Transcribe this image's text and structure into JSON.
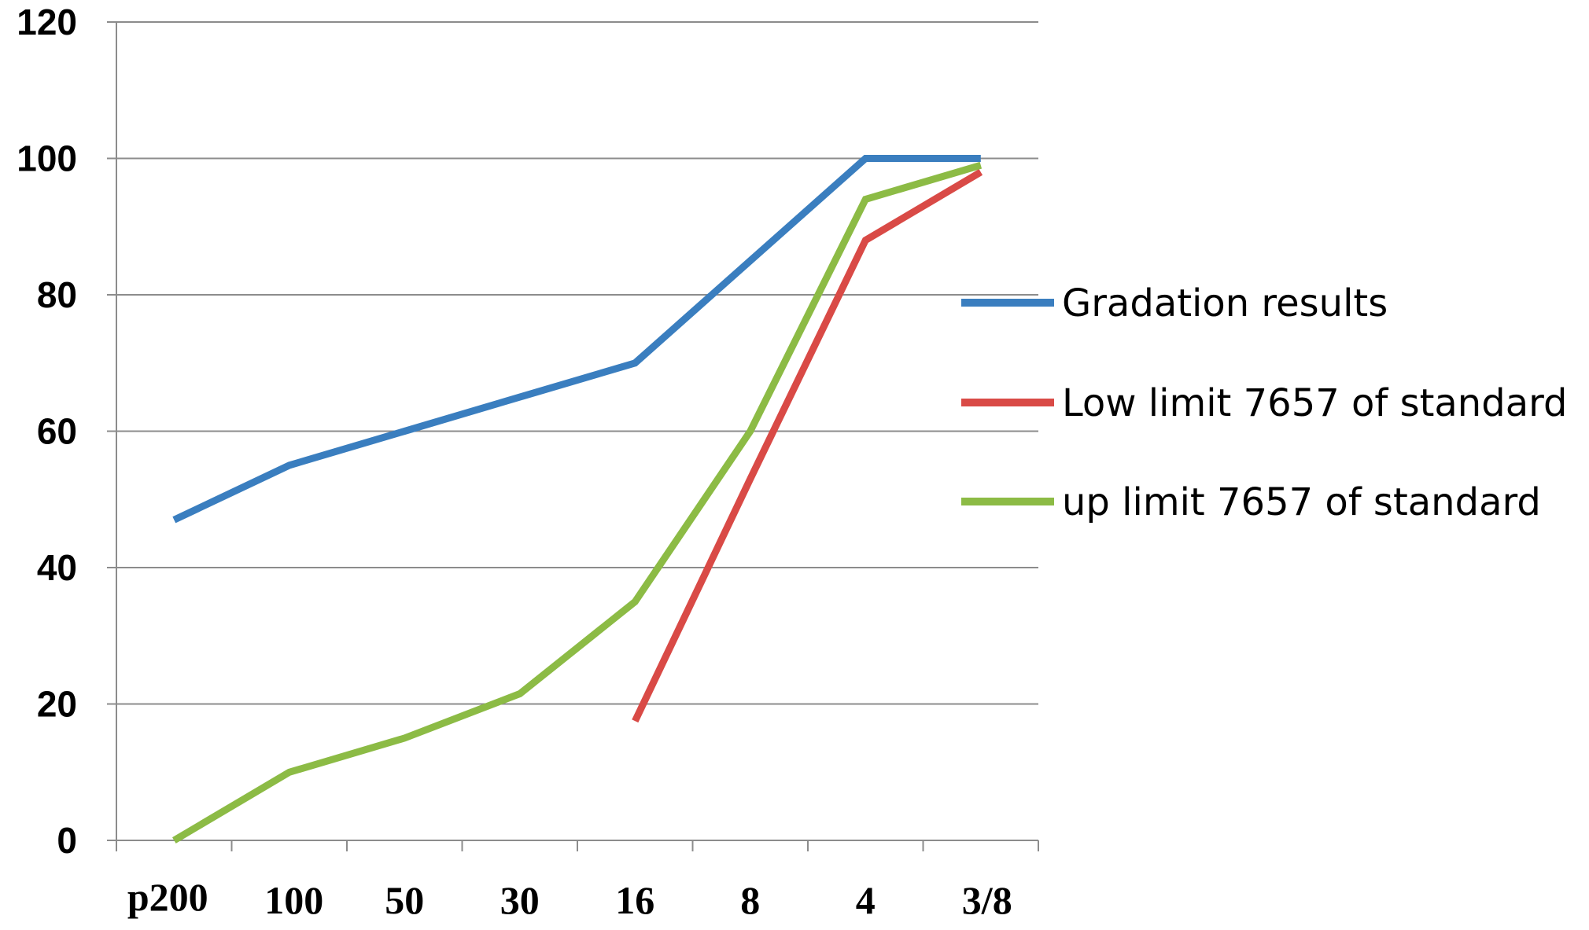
{
  "chart_data": {
    "type": "line",
    "categories": [
      "p200",
      "100",
      "50",
      "30",
      "16",
      "8",
      "4",
      "3/8"
    ],
    "ylim": [
      0,
      120
    ],
    "yticks": [
      0,
      20,
      40,
      60,
      80,
      100,
      120
    ],
    "grid": true,
    "legend_position": "right",
    "series": [
      {
        "name": "Gradation results",
        "color": "#3a7ebf",
        "points": [
          [
            0,
            47
          ],
          [
            1,
            55
          ],
          [
            2,
            60
          ],
          [
            3,
            65
          ],
          [
            4,
            70
          ],
          [
            5,
            85
          ],
          [
            6,
            100
          ],
          [
            7,
            100
          ]
        ]
      },
      {
        "name": "Low limit 7657 of standard",
        "color": "#d94a46",
        "points": [
          [
            4,
            17.5
          ],
          [
            5,
            53
          ],
          [
            6,
            88
          ],
          [
            7,
            98
          ]
        ]
      },
      {
        "name": "up limit 7657 of standard",
        "color": "#8cbb45",
        "points": [
          [
            0,
            0
          ],
          [
            1,
            10
          ],
          [
            2,
            15
          ],
          [
            3,
            21.5
          ],
          [
            4,
            35
          ],
          [
            5,
            60
          ],
          [
            6,
            94
          ],
          [
            7,
            99
          ]
        ]
      }
    ]
  }
}
